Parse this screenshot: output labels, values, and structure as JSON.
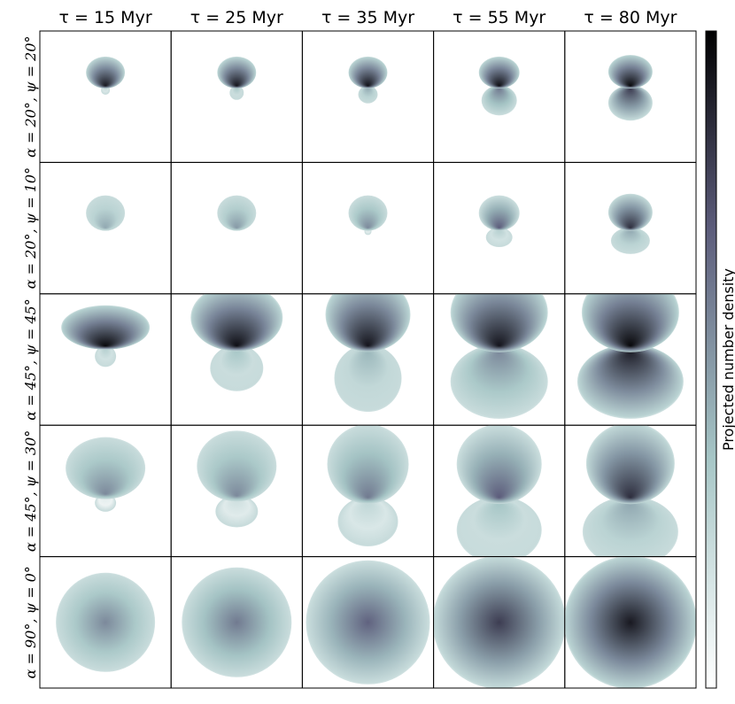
{
  "panel_grid": {
    "columns": [
      "τ = 15 Myr",
      "τ = 25 Myr",
      "τ = 35 Myr",
      "τ = 55 Myr",
      "τ = 80 Myr"
    ],
    "rows": [
      "α = 20°, ψ = 20°",
      "α = 20°, ψ = 10°",
      "α = 45°, ψ = 45°",
      "α = 45°, ψ = 30°",
      "α = 90°, ψ = 0°"
    ]
  },
  "colorbar": {
    "label": "Projected number density"
  }
}
